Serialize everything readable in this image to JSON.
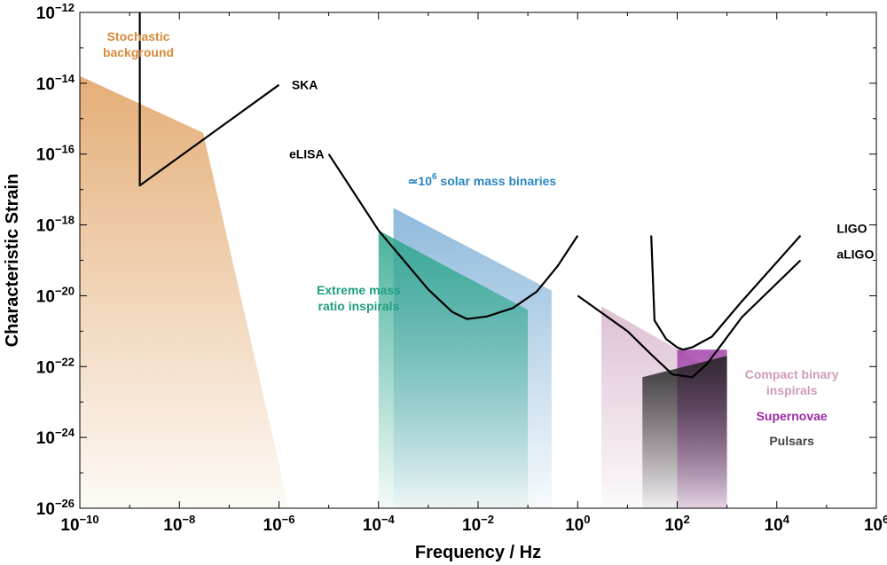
{
  "chart_data": {
    "type": "area",
    "xlabel": "Frequency / Hz",
    "ylabel": "Characteristic Strain",
    "x_scale": "log",
    "y_scale": "log",
    "xlim": [
      1e-10,
      1000000.0
    ],
    "ylim": [
      1e-26,
      1e-12
    ],
    "x_ticks": [
      {
        "base": "10",
        "exp": "−10",
        "value": 1e-10
      },
      {
        "base": "10",
        "exp": "−8",
        "value": 1e-08
      },
      {
        "base": "10",
        "exp": "−6",
        "value": 1e-06
      },
      {
        "base": "10",
        "exp": "−4",
        "value": 0.0001
      },
      {
        "base": "10",
        "exp": "−2",
        "value": 0.01
      },
      {
        "base": "10",
        "exp": "0",
        "value": 1
      },
      {
        "base": "10",
        "exp": "2",
        "value": 100.0
      },
      {
        "base": "10",
        "exp": "4",
        "value": 10000.0
      },
      {
        "base": "10",
        "exp": "6",
        "value": 1000000.0
      }
    ],
    "y_ticks": [
      {
        "base": "10",
        "exp": "−12",
        "value": 1e-12
      },
      {
        "base": "10",
        "exp": "−14",
        "value": 1e-14
      },
      {
        "base": "10",
        "exp": "−16",
        "value": 1e-16
      },
      {
        "base": "10",
        "exp": "−18",
        "value": 1e-18
      },
      {
        "base": "10",
        "exp": "−20",
        "value": 1e-20
      },
      {
        "base": "10",
        "exp": "−22",
        "value": 1e-22
      },
      {
        "base": "10",
        "exp": "−24",
        "value": 1e-24
      },
      {
        "base": "10",
        "exp": "−26",
        "value": 1e-26
      }
    ],
    "regions": [
      {
        "id": "stochastic-background",
        "label_lines": [
          "Stochastic",
          "background"
        ],
        "color": "#e0a060",
        "polygon": [
          [
            1e-10,
            1.6e-14
          ],
          [
            3e-08,
            4e-16
          ],
          [
            1.6e-06,
            1e-26
          ],
          [
            1e-10,
            1e-26
          ]
        ],
        "opacity_top": 0.85,
        "opacity_bottom": 0.05,
        "label_anchor": [
          1.5e-09,
          1.6e-13
        ]
      },
      {
        "id": "solar-mass-binaries",
        "label_prefix": "≃10",
        "label_exp": "6",
        "label_suffix": " solar mass binaries",
        "color": "#6aa3d0",
        "polygon": [
          [
            0.0002,
            3e-18
          ],
          [
            0.3,
            1.4e-20
          ],
          [
            0.3,
            1e-26
          ],
          [
            0.0002,
            1e-26
          ]
        ],
        "opacity_top": 0.75,
        "opacity_bottom": 0.05,
        "label_anchor": [
          0.012,
          1.3e-17
        ]
      },
      {
        "id": "extreme-mass-ratio-inspirals",
        "label_lines": [
          "Extreme mass",
          "ratio inspirals"
        ],
        "color": "#2aa58a",
        "polygon": [
          [
            0.0001,
            7e-19
          ],
          [
            0.1,
            4e-21
          ],
          [
            0.1,
            1e-26
          ],
          [
            0.0001,
            1e-26
          ]
        ],
        "opacity_top": 0.85,
        "opacity_bottom": 0.05,
        "label_anchor": [
          4e-05,
          1.1e-20
        ]
      },
      {
        "id": "compact-binary-inspirals",
        "label_lines": [
          "Compact binary",
          "inspirals"
        ],
        "color": "#c898b8",
        "polygon": [
          [
            3,
            5e-21
          ],
          [
            1000,
            5e-23
          ],
          [
            1000,
            1e-26
          ],
          [
            3,
            1e-26
          ]
        ],
        "opacity_top": 0.6,
        "opacity_bottom": 0.05,
        "label_anchor": [
          20000.0,
          4.5e-23
        ]
      },
      {
        "id": "supernovae",
        "label_lines": [
          "Supernovae"
        ],
        "color": "#a040a8",
        "polygon": [
          [
            100,
            3e-22
          ],
          [
            1000,
            3e-22
          ],
          [
            1000,
            1e-26
          ],
          [
            100,
            1e-26
          ]
        ],
        "opacity_top": 0.85,
        "opacity_bottom": 0.15,
        "label_anchor": [
          20000.0,
          3e-24
        ]
      },
      {
        "id": "pulsars",
        "label_lines": [
          "Pulsars"
        ],
        "color": "#222222",
        "polygon": [
          [
            20,
            5e-23
          ],
          [
            1000,
            2e-22
          ],
          [
            1000,
            1e-26
          ],
          [
            20,
            1e-26
          ]
        ],
        "opacity_top": 0.9,
        "opacity_bottom": 0.05,
        "label_anchor": [
          20000.0,
          6e-25
        ]
      }
    ],
    "curves": [
      {
        "id": "ska",
        "label": "SKA",
        "color": "#000000",
        "points": [
          [
            1.6e-09,
            1e-12
          ],
          [
            1.6e-09,
            1.3e-17
          ],
          [
            1e-06,
            9e-15
          ]
        ],
        "label_anchor": [
          1.8e-06,
          9e-15
        ]
      },
      {
        "id": "elisa",
        "label": "eLISA",
        "color": "#000000",
        "points": [
          [
            1e-05,
            1e-16
          ],
          [
            0.0001,
            7e-19
          ],
          [
            0.001,
            1.5e-20
          ],
          [
            0.003,
            3.5e-21
          ],
          [
            0.006,
            2.2e-21
          ],
          [
            0.015,
            2.6e-21
          ],
          [
            0.05,
            4.5e-21
          ],
          [
            0.15,
            1.3e-20
          ],
          [
            0.4,
            7e-20
          ],
          [
            1,
            5e-19
          ]
        ],
        "label_anchor": [
          1.6e-06,
          1e-16
        ]
      },
      {
        "id": "ligo",
        "label": "LIGO",
        "color": "#000000",
        "points": [
          [
            30,
            5e-19
          ],
          [
            35,
            2e-21
          ],
          [
            60,
            6e-22
          ],
          [
            100,
            3.5e-22
          ],
          [
            130,
            3e-22
          ],
          [
            200,
            3.5e-22
          ],
          [
            500,
            7e-22
          ],
          [
            2000,
            7e-21
          ],
          [
            30000,
            5e-19
          ]
        ],
        "label_anchor": [
          160000.0,
          8e-19
        ]
      },
      {
        "id": "aligo",
        "label": "aLIGO",
        "color": "#000000",
        "points": [
          [
            1,
            1e-20
          ],
          [
            10,
            1e-21
          ],
          [
            30,
            2.2e-22
          ],
          [
            80,
            6e-23
          ],
          [
            200,
            5e-23
          ],
          [
            400,
            1.2e-22
          ],
          [
            2000,
            2.5e-21
          ],
          [
            30000,
            1e-19
          ]
        ],
        "label_anchor": [
          160000.0,
          1.5e-19
        ]
      }
    ],
    "legend": "none",
    "grid": false
  }
}
